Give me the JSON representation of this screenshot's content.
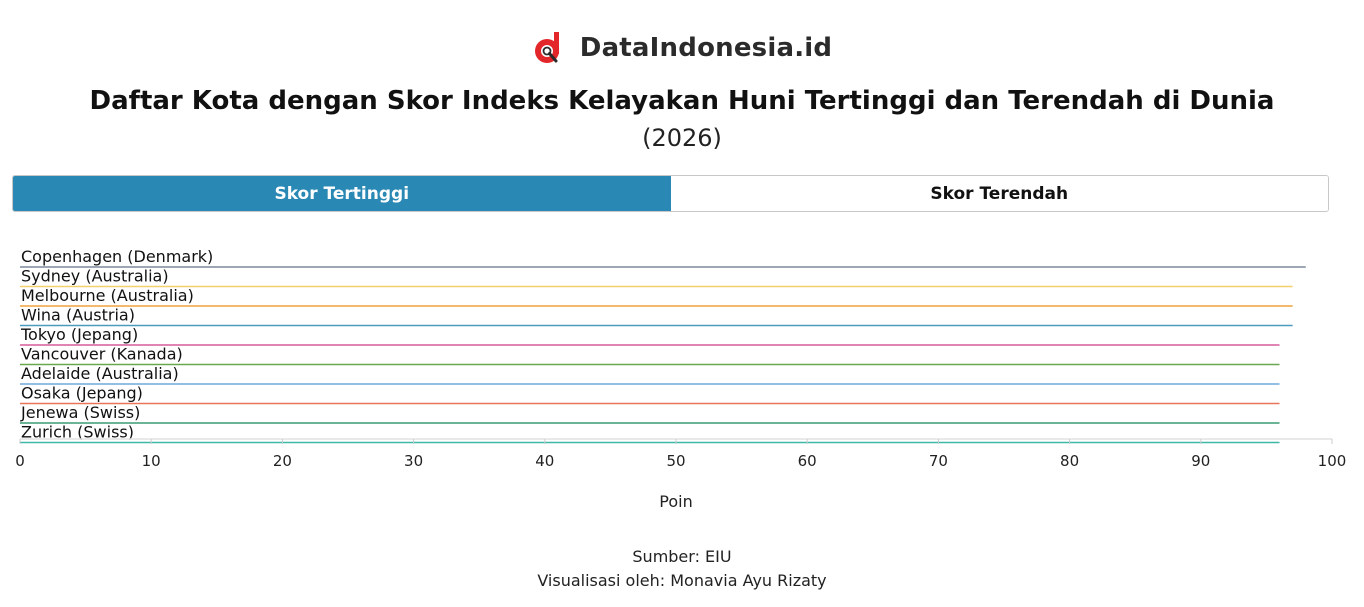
{
  "logo": {
    "text": "DataIndonesia.id",
    "colors": {
      "red": "#e3262a",
      "dark": "#2b2b2b"
    }
  },
  "title": "Daftar Kota dengan Skor Indeks Kelayakan Huni Tertinggi dan Terendah di Dunia",
  "subtitle": "(2026)",
  "tabs": [
    {
      "label": "Skor Tertinggi",
      "active": true
    },
    {
      "label": "Skor Terendah",
      "active": false
    }
  ],
  "chart_data": {
    "type": "bar",
    "orientation": "horizontal",
    "categories": [
      "Copenhagen (Denmark)",
      "Sydney (Australia)",
      "Melbourne (Australia)",
      "Wina (Austria)",
      "Tokyo (Jepang)",
      "Vancouver (Kanada)",
      "Adelaide (Australia)",
      "Osaka (Jepang)",
      "Jenewa (Swiss)",
      "Zurich (Swiss)"
    ],
    "values": [
      98.0,
      97.0,
      97.0,
      97.0,
      96.0,
      96.0,
      96.0,
      96.0,
      96.0,
      96.0
    ],
    "colors": [
      "#7c8a9a",
      "#f2d06b",
      "#f0a23b",
      "#4a9bbf",
      "#d65c9c",
      "#6aa84f",
      "#6fa8dc",
      "#e8775a",
      "#3c9c73",
      "#3fb8a6"
    ],
    "xlim": [
      0,
      100
    ],
    "xticks": [
      0,
      10,
      20,
      30,
      40,
      50,
      60,
      70,
      80,
      90,
      100
    ],
    "xlabel": "Poin",
    "ylabel": "",
    "grid": false
  },
  "footer": {
    "source": "Sumber: EIU",
    "credit": "Visualisasi oleh: Monavia Ayu Rizaty"
  }
}
